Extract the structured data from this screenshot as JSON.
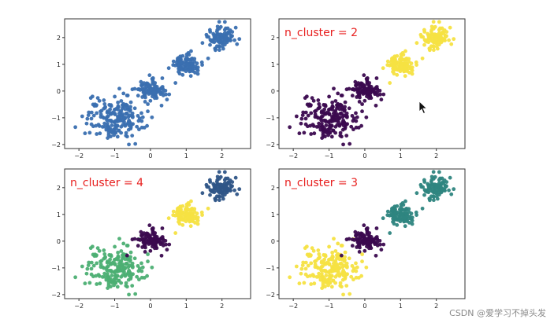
{
  "chart_data": [
    {
      "type": "scatter",
      "title": "",
      "xlabel": "",
      "ylabel": "",
      "xlim": [
        -2.4,
        2.8
      ],
      "ylim": [
        -2.15,
        2.7
      ],
      "xticks": [
        -2,
        -1,
        0,
        1,
        2
      ],
      "yticks": [
        -2,
        -1,
        0,
        1,
        2
      ],
      "x_tick_labels": [
        "−2",
        "−1",
        "0",
        "1",
        "2"
      ],
      "y_tick_labels": [
        "−2",
        "−1",
        "0",
        "1",
        "2"
      ],
      "grid": false,
      "clusters": [
        {
          "center": [
            -1.0,
            -1.0
          ],
          "spread": 0.4,
          "n": 200,
          "color": "#3a6fb0"
        },
        {
          "center": [
            0.0,
            0.0
          ],
          "spread": 0.2,
          "n": 100,
          "color": "#3a6fb0"
        },
        {
          "center": [
            1.0,
            1.0
          ],
          "spread": 0.2,
          "n": 100,
          "color": "#3a6fb0"
        },
        {
          "center": [
            2.0,
            2.0
          ],
          "spread": 0.2,
          "n": 100,
          "color": "#3a6fb0"
        }
      ]
    },
    {
      "type": "scatter",
      "title": "n_cluster = 2",
      "xlabel": "",
      "ylabel": "",
      "xlim": [
        -2.4,
        2.8
      ],
      "ylim": [
        -2.15,
        2.7
      ],
      "xticks": [
        -2,
        -1,
        0,
        1,
        2
      ],
      "yticks": [
        -2,
        -1,
        0,
        1,
        2
      ],
      "x_tick_labels": [
        "−2",
        "−1",
        "0",
        "1",
        "2"
      ],
      "y_tick_labels": [
        "−2",
        "−1",
        "0",
        "1",
        "2"
      ],
      "grid": false,
      "clusters": [
        {
          "center": [
            -1.0,
            -1.0
          ],
          "spread": 0.4,
          "n": 200,
          "color": "#3b0a4f"
        },
        {
          "center": [
            0.0,
            0.0
          ],
          "spread": 0.2,
          "n": 100,
          "color": "#3b0a4f"
        },
        {
          "center": [
            1.0,
            1.0
          ],
          "spread": 0.2,
          "n": 100,
          "color": "#f5e142"
        },
        {
          "center": [
            2.0,
            2.0
          ],
          "spread": 0.2,
          "n": 100,
          "color": "#f5e142"
        }
      ]
    },
    {
      "type": "scatter",
      "title": "n_cluster = 4",
      "xlabel": "",
      "ylabel": "",
      "xlim": [
        -2.4,
        2.8
      ],
      "ylim": [
        -2.15,
        2.7
      ],
      "xticks": [
        -2,
        -1,
        0,
        1,
        2
      ],
      "yticks": [
        -2,
        -1,
        0,
        1,
        2
      ],
      "x_tick_labels": [
        "−2",
        "−1",
        "0",
        "1",
        "2"
      ],
      "y_tick_labels": [
        "−2",
        "−1",
        "0",
        "1",
        "2"
      ],
      "grid": false,
      "clusters": [
        {
          "center": [
            -1.0,
            -1.0
          ],
          "spread": 0.4,
          "n": 200,
          "color": "#4caf73"
        },
        {
          "center": [
            0.0,
            0.0
          ],
          "spread": 0.2,
          "n": 100,
          "color": "#3b0a4f"
        },
        {
          "center": [
            1.0,
            1.0
          ],
          "spread": 0.2,
          "n": 100,
          "color": "#f5e142"
        },
        {
          "center": [
            2.0,
            2.0
          ],
          "spread": 0.2,
          "n": 100,
          "color": "#2f5587"
        }
      ]
    },
    {
      "type": "scatter",
      "title": "n_cluster = 3",
      "xlabel": "",
      "ylabel": "",
      "xlim": [
        -2.4,
        2.8
      ],
      "ylim": [
        -2.15,
        2.7
      ],
      "xticks": [
        -2,
        -1,
        0,
        1,
        2
      ],
      "yticks": [
        -2,
        -1,
        0,
        1,
        2
      ],
      "x_tick_labels": [
        "−2",
        "−1",
        "0",
        "1",
        "2"
      ],
      "y_tick_labels": [
        "−2",
        "−1",
        "0",
        "1",
        "2"
      ],
      "grid": false,
      "clusters": [
        {
          "center": [
            -1.0,
            -1.0
          ],
          "spread": 0.4,
          "n": 200,
          "color": "#f5e142"
        },
        {
          "center": [
            0.0,
            0.0
          ],
          "spread": 0.2,
          "n": 100,
          "color": "#3b0a4f"
        },
        {
          "center": [
            1.0,
            1.0
          ],
          "spread": 0.2,
          "n": 100,
          "color": "#2e8580"
        },
        {
          "center": [
            2.0,
            2.0
          ],
          "spread": 0.2,
          "n": 100,
          "color": "#2e8580"
        }
      ]
    }
  ],
  "watermark": "CSDN @爱学习不掉头发",
  "cursor_icon": "mouse-pointer-icon"
}
